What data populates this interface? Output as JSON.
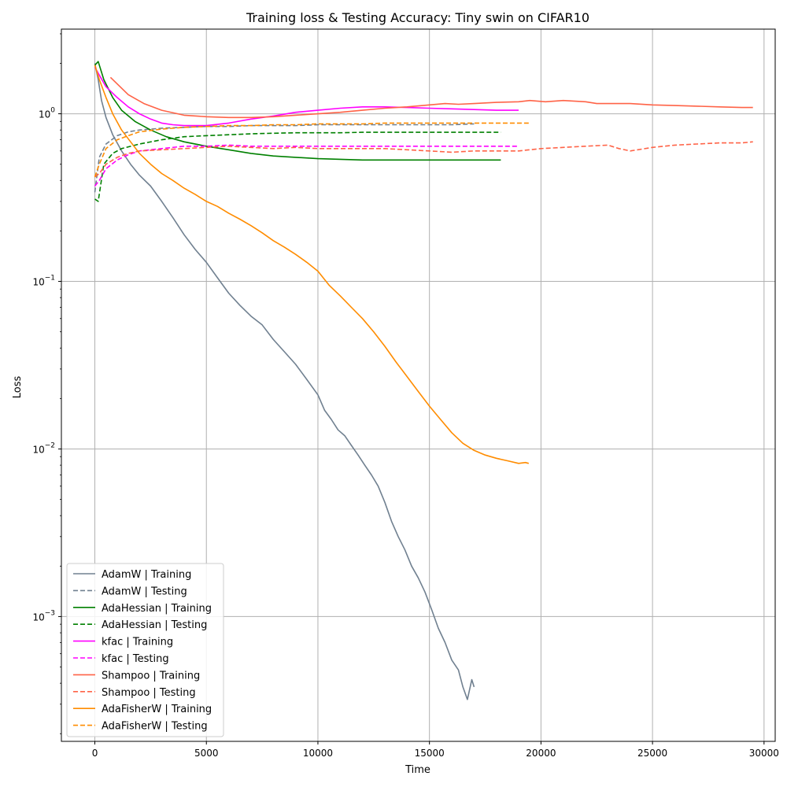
{
  "chart_data": {
    "type": "line",
    "title": "Training loss & Testing Accuracy: Tiny swin on CIFAR10",
    "xlabel": "Time",
    "ylabel": "Loss",
    "xlim": [
      -1500,
      30500
    ],
    "ylim": [
      0.00018,
      3.2
    ],
    "yscale": "log",
    "grid": true,
    "legend_position": "lower-left",
    "x_ticks": [
      0,
      5000,
      10000,
      15000,
      20000,
      25000,
      30000
    ],
    "x_tick_labels": [
      "0",
      "5000",
      "10000",
      "15000",
      "20000",
      "25000",
      "30000"
    ],
    "y_ticks": [
      0.001,
      0.01,
      0.1,
      1
    ],
    "y_tick_labels": [
      {
        "base": "10",
        "exp": "−3"
      },
      {
        "base": "10",
        "exp": "−2"
      },
      {
        "base": "10",
        "exp": "−1"
      },
      {
        "base": "10",
        "exp": "0"
      }
    ],
    "series": [
      {
        "name": "AdamW | Training",
        "color": "#708090",
        "dash": "solid",
        "x": [
          0,
          150,
          300,
          500,
          800,
          1200,
          1600,
          2000,
          2500,
          3000,
          3500,
          4000,
          4500,
          5000,
          5500,
          6000,
          6500,
          7000,
          7500,
          8000,
          8500,
          9000,
          9500,
          10000,
          10300,
          10600,
          10900,
          11200,
          11500,
          11800,
          12100,
          12400,
          12700,
          13000,
          13300,
          13600,
          13900,
          14200,
          14500,
          14800,
          15100,
          15400,
          15700,
          16000,
          16300,
          16500,
          16700,
          16900,
          17000
        ],
        "y": [
          2.0,
          1.6,
          1.2,
          0.95,
          0.75,
          0.6,
          0.5,
          0.43,
          0.37,
          0.3,
          0.24,
          0.19,
          0.155,
          0.13,
          0.105,
          0.085,
          0.072,
          0.062,
          0.055,
          0.045,
          0.038,
          0.032,
          0.026,
          0.021,
          0.017,
          0.015,
          0.013,
          0.012,
          0.0105,
          0.0092,
          0.008,
          0.007,
          0.006,
          0.0048,
          0.0037,
          0.003,
          0.0025,
          0.002,
          0.0017,
          0.0014,
          0.0011,
          0.00085,
          0.0007,
          0.00055,
          0.00048,
          0.00038,
          0.00032,
          0.00042,
          0.00038
        ]
      },
      {
        "name": "AdamW | Testing",
        "color": "#708090",
        "dash": "dashed",
        "x": [
          0,
          200,
          500,
          1000,
          1500,
          2000,
          2500,
          3000,
          4000,
          5000,
          6000,
          7000,
          8000,
          9000,
          10000,
          11000,
          12000,
          13000,
          14000,
          15000,
          16000,
          17000
        ],
        "y": [
          0.34,
          0.55,
          0.66,
          0.74,
          0.78,
          0.8,
          0.81,
          0.82,
          0.83,
          0.84,
          0.84,
          0.85,
          0.85,
          0.85,
          0.86,
          0.86,
          0.86,
          0.86,
          0.86,
          0.86,
          0.86,
          0.87
        ]
      },
      {
        "name": "AdaHessian | Training",
        "color": "#008000",
        "dash": "solid",
        "x": [
          0,
          150,
          400,
          800,
          1200,
          1800,
          2500,
          3200,
          4000,
          5000,
          6000,
          7000,
          8000,
          9000,
          10000,
          11000,
          12000,
          13000,
          14000,
          15000,
          16000,
          17000,
          18000,
          18200
        ],
        "y": [
          1.95,
          2.05,
          1.6,
          1.25,
          1.05,
          0.9,
          0.8,
          0.73,
          0.68,
          0.64,
          0.61,
          0.58,
          0.56,
          0.55,
          0.54,
          0.535,
          0.53,
          0.53,
          0.53,
          0.53,
          0.53,
          0.53,
          0.53,
          0.53
        ]
      },
      {
        "name": "AdaHessian | Testing",
        "color": "#008000",
        "dash": "dashed",
        "x": [
          0,
          150,
          400,
          800,
          1200,
          2000,
          3000,
          4000,
          5000,
          6000,
          7000,
          8000,
          9000,
          10000,
          11000,
          12000,
          13000,
          14000,
          15000,
          16000,
          17000,
          18000,
          18200
        ],
        "y": [
          0.31,
          0.3,
          0.5,
          0.58,
          0.62,
          0.66,
          0.7,
          0.73,
          0.74,
          0.75,
          0.76,
          0.765,
          0.77,
          0.77,
          0.77,
          0.775,
          0.775,
          0.775,
          0.775,
          0.775,
          0.775,
          0.775,
          0.775
        ]
      },
      {
        "name": "kfac | Training",
        "color": "#ff00ff",
        "dash": "solid",
        "x": [
          0,
          200,
          500,
          1000,
          1500,
          2000,
          2500,
          3000,
          3500,
          4000,
          5000,
          6000,
          7000,
          8000,
          9000,
          10000,
          11000,
          12000,
          13000,
          14000,
          15000,
          16000,
          17000,
          18000,
          19000
        ],
        "y": [
          1.9,
          1.7,
          1.45,
          1.25,
          1.1,
          1.0,
          0.93,
          0.88,
          0.86,
          0.85,
          0.85,
          0.88,
          0.93,
          0.97,
          1.02,
          1.05,
          1.08,
          1.1,
          1.1,
          1.09,
          1.08,
          1.07,
          1.06,
          1.05,
          1.05
        ]
      },
      {
        "name": "kfac | Testing",
        "color": "#ff00ff",
        "dash": "dashed",
        "x": [
          0,
          200,
          500,
          1000,
          1500,
          2000,
          3000,
          4000,
          5000,
          6000,
          7000,
          8000,
          9000,
          10000,
          11000,
          12000,
          13000,
          14000,
          15000,
          16000,
          17000,
          18000,
          19000
        ],
        "y": [
          0.37,
          0.4,
          0.47,
          0.53,
          0.57,
          0.6,
          0.62,
          0.64,
          0.64,
          0.65,
          0.64,
          0.64,
          0.64,
          0.64,
          0.64,
          0.64,
          0.64,
          0.64,
          0.64,
          0.64,
          0.64,
          0.64,
          0.64
        ]
      },
      {
        "name": "Shampoo | Training",
        "color": "#ff6347",
        "dash": "solid",
        "x": [
          700,
          1500,
          2200,
          3000,
          4000,
          5000,
          6000,
          7000,
          8000,
          9000,
          10000,
          11000,
          12000,
          13000,
          14000,
          15000,
          15700,
          16300,
          17000,
          18000,
          19000,
          19500,
          20200,
          21000,
          22000,
          22500,
          23000,
          24000,
          25000,
          26000,
          27000,
          28000,
          29000,
          29500
        ],
        "y": [
          1.65,
          1.3,
          1.15,
          1.05,
          0.98,
          0.96,
          0.95,
          0.95,
          0.96,
          0.98,
          1.0,
          1.02,
          1.05,
          1.08,
          1.1,
          1.13,
          1.15,
          1.14,
          1.15,
          1.17,
          1.18,
          1.2,
          1.18,
          1.2,
          1.18,
          1.15,
          1.15,
          1.15,
          1.13,
          1.12,
          1.11,
          1.1,
          1.09,
          1.09
        ]
      },
      {
        "name": "Shampoo | Testing",
        "color": "#ff6347",
        "dash": "dashed",
        "x": [
          0,
          200,
          500,
          1000,
          1500,
          2000,
          3000,
          4000,
          5000,
          6000,
          7000,
          8000,
          9000,
          10000,
          11000,
          12000,
          13000,
          14000,
          15000,
          16000,
          17000,
          18000,
          19000,
          20000,
          21000,
          22000,
          23000,
          23500,
          24000,
          25000,
          26000,
          27000,
          28000,
          29000,
          29500
        ],
        "y": [
          0.42,
          0.44,
          0.5,
          0.55,
          0.58,
          0.6,
          0.61,
          0.62,
          0.63,
          0.64,
          0.63,
          0.62,
          0.63,
          0.62,
          0.62,
          0.62,
          0.62,
          0.61,
          0.6,
          0.59,
          0.6,
          0.6,
          0.6,
          0.62,
          0.63,
          0.64,
          0.65,
          0.62,
          0.6,
          0.63,
          0.65,
          0.66,
          0.67,
          0.67,
          0.68
        ]
      },
      {
        "name": "AdaFisherW | Training",
        "color": "#ff8c00",
        "dash": "solid",
        "x": [
          0,
          200,
          500,
          800,
          1200,
          1600,
          2000,
          2500,
          3000,
          3500,
          4000,
          4500,
          5000,
          5500,
          6000,
          6500,
          7000,
          7500,
          8000,
          8500,
          9000,
          9500,
          10000,
          10500,
          11000,
          11500,
          12000,
          12500,
          13000,
          13500,
          14000,
          14500,
          15000,
          15500,
          16000,
          16500,
          17000,
          17500,
          18000,
          18500,
          19000,
          19300,
          19450
        ],
        "y": [
          1.95,
          1.6,
          1.25,
          1.0,
          0.8,
          0.68,
          0.58,
          0.5,
          0.44,
          0.4,
          0.36,
          0.33,
          0.3,
          0.28,
          0.255,
          0.235,
          0.215,
          0.195,
          0.175,
          0.16,
          0.145,
          0.13,
          0.115,
          0.095,
          0.082,
          0.07,
          0.06,
          0.05,
          0.041,
          0.033,
          0.027,
          0.022,
          0.018,
          0.015,
          0.0125,
          0.0108,
          0.0098,
          0.0092,
          0.0088,
          0.0085,
          0.0082,
          0.0083,
          0.0082
        ]
      },
      {
        "name": "AdaFisherW | Testing",
        "color": "#ff8c00",
        "dash": "dashed",
        "x": [
          0,
          200,
          500,
          1000,
          1500,
          2000,
          3000,
          4000,
          5000,
          6000,
          7000,
          8000,
          9000,
          10000,
          11000,
          12000,
          13000,
          14000,
          15000,
          16000,
          17000,
          18000,
          19000,
          19450
        ],
        "y": [
          0.42,
          0.5,
          0.62,
          0.7,
          0.74,
          0.78,
          0.81,
          0.83,
          0.84,
          0.85,
          0.85,
          0.86,
          0.86,
          0.87,
          0.87,
          0.87,
          0.88,
          0.88,
          0.88,
          0.88,
          0.88,
          0.88,
          0.88,
          0.88
        ]
      }
    ]
  }
}
